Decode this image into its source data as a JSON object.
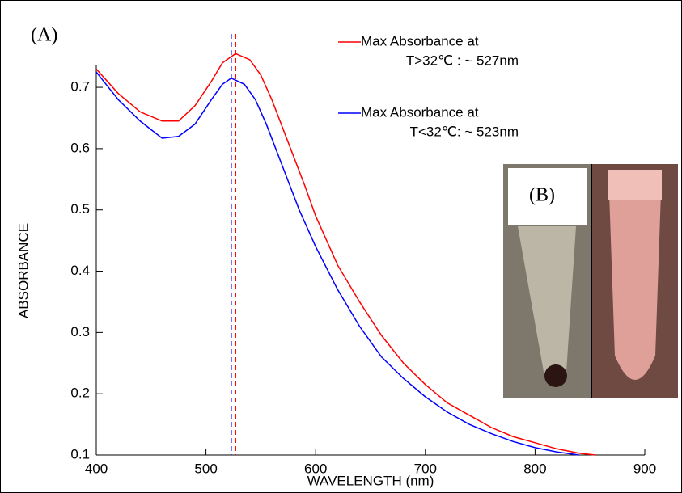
{
  "chart_data": {
    "type": "line",
    "panel_label": "(A)",
    "inset_label": "(B)",
    "xlabel": "WAVELENGTH (nm)",
    "ylabel": "ABSORBANCE",
    "xlim": [
      400,
      900
    ],
    "xticks": [
      400,
      500,
      600,
      700,
      800,
      900
    ],
    "ylim": [
      0.1,
      0.77
    ],
    "yticks": [
      0.1,
      0.2,
      0.3,
      0.4,
      0.5,
      0.6,
      0.7
    ],
    "series": [
      {
        "name": [
          "Max Absorbance at",
          "T>32℃ : ~ 527nm"
        ],
        "color": "#ff0000",
        "peak": 527,
        "x": [
          400,
          420,
          440,
          460,
          475,
          490,
          505,
          515,
          527,
          540,
          550,
          560,
          575,
          590,
          600,
          620,
          640,
          660,
          680,
          700,
          720,
          740,
          760,
          780,
          800,
          820,
          840,
          855
        ],
        "values": [
          0.73,
          0.69,
          0.66,
          0.645,
          0.645,
          0.67,
          0.71,
          0.74,
          0.755,
          0.745,
          0.72,
          0.68,
          0.61,
          0.54,
          0.49,
          0.41,
          0.35,
          0.295,
          0.25,
          0.215,
          0.185,
          0.165,
          0.145,
          0.13,
          0.12,
          0.11,
          0.103,
          0.1
        ]
      },
      {
        "name": [
          "Max Absorbance at",
          "T<32℃: ~ 523nm"
        ],
        "color": "#0000ff",
        "peak": 523,
        "x": [
          400,
          420,
          440,
          460,
          475,
          490,
          505,
          515,
          523,
          535,
          545,
          555,
          570,
          585,
          600,
          620,
          640,
          660,
          680,
          700,
          720,
          740,
          760,
          780,
          800,
          820,
          840
        ],
        "values": [
          0.725,
          0.68,
          0.645,
          0.617,
          0.62,
          0.64,
          0.68,
          0.705,
          0.715,
          0.705,
          0.68,
          0.64,
          0.57,
          0.5,
          0.44,
          0.37,
          0.31,
          0.26,
          0.225,
          0.195,
          0.17,
          0.15,
          0.135,
          0.122,
          0.112,
          0.105,
          0.1
        ]
      }
    ]
  }
}
